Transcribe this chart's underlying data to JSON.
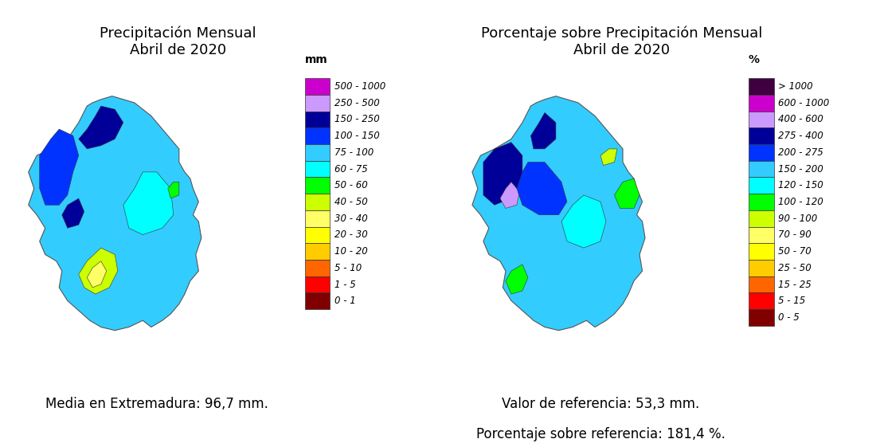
{
  "left_title": "Precipitación Mensual\nAbril de 2020",
  "right_title": "Porcentaje sobre Precipitación Mensual\nAbril de 2020",
  "left_caption": "Media en Extremadura: 96,7 mm.",
  "right_caption1": "Valor de referencia: 53,3 mm.",
  "right_caption2": "Porcentaje sobre referencia: 181,4 %.",
  "left_legend_title": "mm",
  "right_legend_title": "%",
  "left_legend": [
    {
      "color": "#CC00CC",
      "label": "500 - 1000"
    },
    {
      "color": "#CC99FF",
      "label": "250 - 500"
    },
    {
      "color": "#000099",
      "label": "150 - 250"
    },
    {
      "color": "#0033FF",
      "label": "100 - 150"
    },
    {
      "color": "#33CCFF",
      "label": "75 - 100"
    },
    {
      "color": "#00FFFF",
      "label": "60 - 75"
    },
    {
      "color": "#00FF00",
      "label": "50 - 60"
    },
    {
      "color": "#CCFF00",
      "label": "40 - 50"
    },
    {
      "color": "#FFFF66",
      "label": "30 - 40"
    },
    {
      "color": "#FFFF00",
      "label": "20 - 30"
    },
    {
      "color": "#FFCC00",
      "label": "10 - 20"
    },
    {
      "color": "#FF6600",
      "label": "5 - 10"
    },
    {
      "color": "#FF0000",
      "label": "1 - 5"
    },
    {
      "color": "#800000",
      "label": "0 - 1"
    }
  ],
  "right_legend": [
    {
      "color": "#400040",
      "label": "> 1000"
    },
    {
      "color": "#CC00CC",
      "label": "600 - 1000"
    },
    {
      "color": "#CC99FF",
      "label": "400 - 600"
    },
    {
      "color": "#000099",
      "label": "275 - 400"
    },
    {
      "color": "#0033FF",
      "label": "200 - 275"
    },
    {
      "color": "#33CCFF",
      "label": "150 - 200"
    },
    {
      "color": "#00FFFF",
      "label": "120 - 150"
    },
    {
      "color": "#00FF00",
      "label": "100 - 120"
    },
    {
      "color": "#CCFF00",
      "label": "90 - 100"
    },
    {
      "color": "#FFFF66",
      "label": "70 - 90"
    },
    {
      "color": "#FFFF00",
      "label": "50 - 70"
    },
    {
      "color": "#FFCC00",
      "label": "25 - 50"
    },
    {
      "color": "#FF6600",
      "label": "15 - 25"
    },
    {
      "color": "#FF0000",
      "label": "5 - 15"
    },
    {
      "color": "#800000",
      "label": "0 - 5"
    }
  ],
  "bg_color": "#FFFFFF",
  "border_color": "#AAAAAA",
  "title_fontsize": 13,
  "legend_fontsize": 8.5,
  "caption_fontsize": 12
}
